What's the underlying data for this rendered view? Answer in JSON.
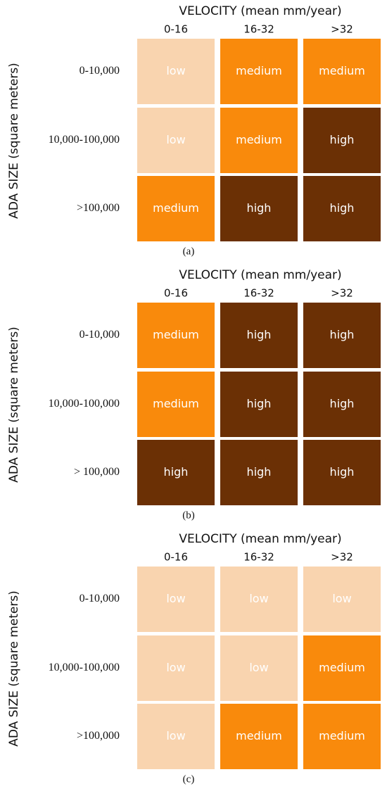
{
  "panels": [
    {
      "title": "VELOCITY (mean mm/year)",
      "y_axis_label": "ADA SIZE (square meters)",
      "columns": [
        "0-16",
        "16-32",
        ">32"
      ],
      "rows": [
        {
          "label": "0-10,000",
          "cells": [
            "low",
            "medium",
            "medium"
          ]
        },
        {
          "label": "10,000-100,000",
          "cells": [
            "low",
            "medium",
            "high"
          ]
        },
        {
          "label": ">100,000",
          "cells": [
            "medium",
            "high",
            "high"
          ]
        }
      ],
      "caption": "(a)"
    },
    {
      "title": "VELOCITY (mean mm/year)",
      "y_axis_label": "ADA SIZE (square meters)",
      "columns": [
        "0-16",
        "16-32",
        ">32"
      ],
      "rows": [
        {
          "label": "0-10,000",
          "cells": [
            "medium",
            "high",
            "high"
          ]
        },
        {
          "label": "10,000-100,000",
          "cells": [
            "medium",
            "high",
            "high"
          ]
        },
        {
          "label": "> 100,000",
          "cells": [
            "high",
            "high",
            "high"
          ]
        }
      ],
      "caption": "(b)"
    },
    {
      "title": "VELOCITY (mean mm/year)",
      "y_axis_label": "ADA SIZE (square meters)",
      "columns": [
        "0-16",
        "16-32",
        ">32"
      ],
      "rows": [
        {
          "label": "0-10,000",
          "cells": [
            "low",
            "low",
            "low"
          ]
        },
        {
          "label": "10,000-100,000",
          "cells": [
            "low",
            "low",
            "medium"
          ]
        },
        {
          "label": ">100,000",
          "cells": [
            "low",
            "medium",
            "medium"
          ]
        }
      ],
      "caption": "(c)"
    }
  ],
  "colors": {
    "low": "#f9d4af",
    "medium": "#f98a0c",
    "high": "#6b3005"
  }
}
